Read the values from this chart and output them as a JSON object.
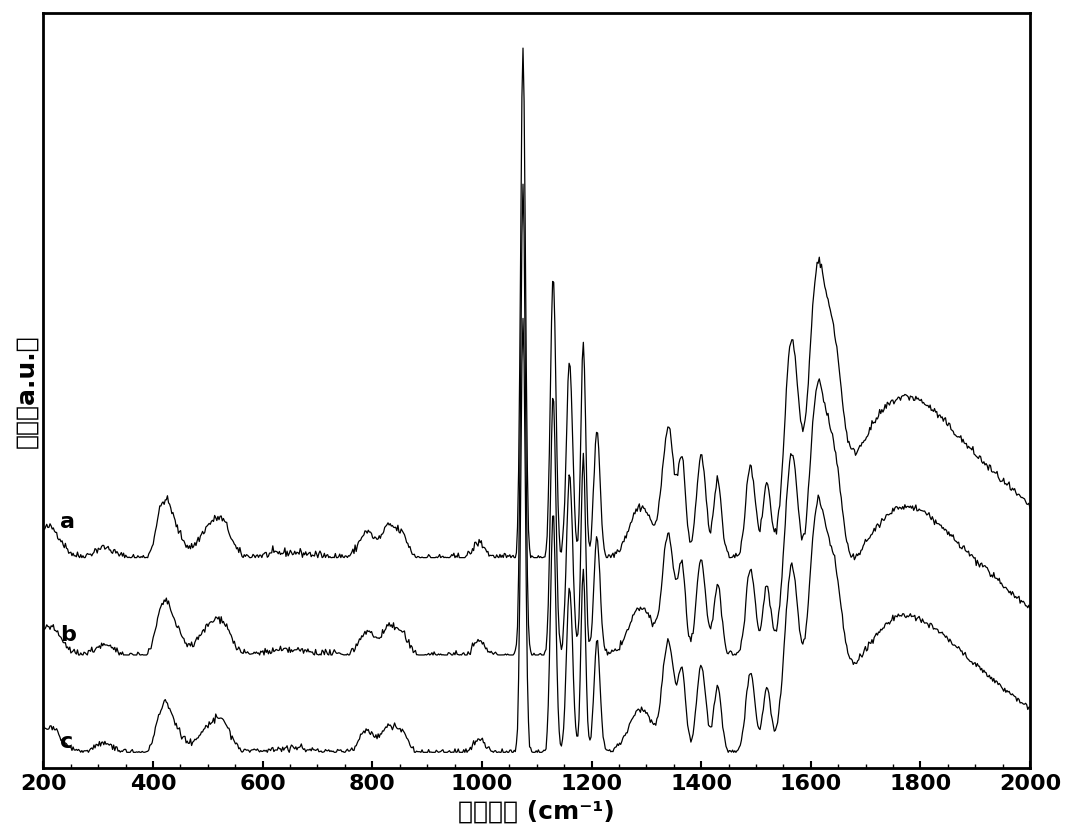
{
  "xlabel": "拉曼位移 (cm⁻¹)",
  "ylabel": "强度（a.u.）",
  "xlim": [
    200,
    2000
  ],
  "labels": [
    "a",
    "b",
    "c"
  ],
  "offsets": [
    0.38,
    0.19,
    0.0
  ],
  "line_color": "#000000",
  "bg_color": "#ffffff",
  "tick_label_fontsize": 16,
  "axis_label_fontsize": 18,
  "label_fontsize": 16
}
